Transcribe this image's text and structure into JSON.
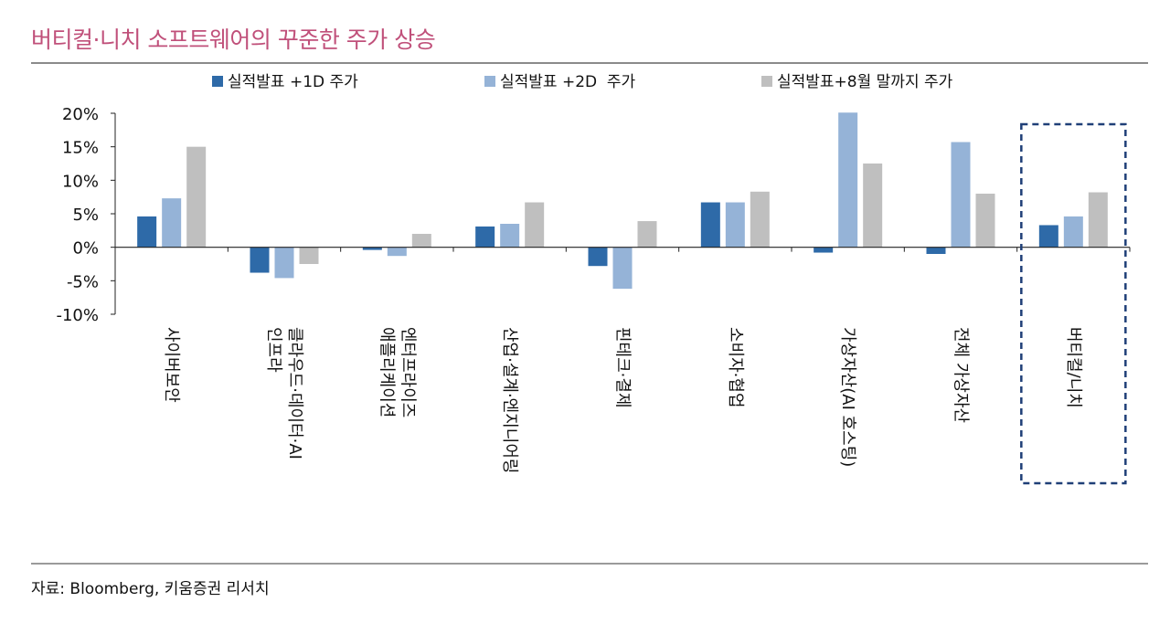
{
  "header": {
    "title": "버티컬·니치 소프트웨어의 꾸준한 주가 상승"
  },
  "footer": {
    "source": "자료: Bloomberg, 키움증권 리서치"
  },
  "colors": {
    "title": "#c0507a",
    "series": [
      "#2e6aa8",
      "#95b3d7",
      "#bfbfbf"
    ],
    "highlight_box": "#1f3f77"
  },
  "chart_data": {
    "type": "bar",
    "title": "버티컬·니치 소프트웨어의 꾸준한 주가 상승",
    "categories": [
      "사이버보안",
      "클라우드·데이터·AI 인프라",
      "엔터프라이즈 애플리케이션",
      "산업·설계·엔지니어링",
      "핀테크·결제",
      "소비자·협업",
      "가상자산(AI 호스팅)",
      "전체 가상자산",
      "버티컬/니치"
    ],
    "category_lines": [
      [
        "사이버보안"
      ],
      [
        "클라우드·데이터·AI",
        "인프라"
      ],
      [
        "엔터프라이즈",
        "애플리케이션"
      ],
      [
        "산업·설계·엔지니어링"
      ],
      [
        "핀테크·결제"
      ],
      [
        "소비자·협업"
      ],
      [
        "가상자산(AI 호스팅)"
      ],
      [
        "전체 가상자산"
      ],
      [
        "버티컬/니치"
      ]
    ],
    "series": [
      {
        "name": "실적발표 +1D 주가",
        "values": [
          4.6,
          -3.8,
          -0.4,
          3.1,
          -2.8,
          6.7,
          -0.8,
          -1.0,
          3.3
        ]
      },
      {
        "name": "실적발표 +2D  주가",
        "values": [
          7.3,
          -4.6,
          -1.3,
          3.5,
          -6.2,
          6.7,
          20.1,
          15.7,
          4.6
        ]
      },
      {
        "name": "실적발표+8월 말까지 주가",
        "values": [
          15.0,
          -2.5,
          2.0,
          6.7,
          3.9,
          8.3,
          12.5,
          8.0,
          8.2
        ]
      }
    ],
    "ylim": [
      -10,
      20
    ],
    "yticks": [
      -10,
      -5,
      0,
      5,
      10,
      15,
      20
    ],
    "ytick_labels": [
      "-10%",
      "-5%",
      "0%",
      "5%",
      "10%",
      "15%",
      "20%"
    ],
    "xlabel": "",
    "ylabel": "",
    "legend_position": "top",
    "grid": false,
    "highlighted_category": "버티컬/니치"
  }
}
